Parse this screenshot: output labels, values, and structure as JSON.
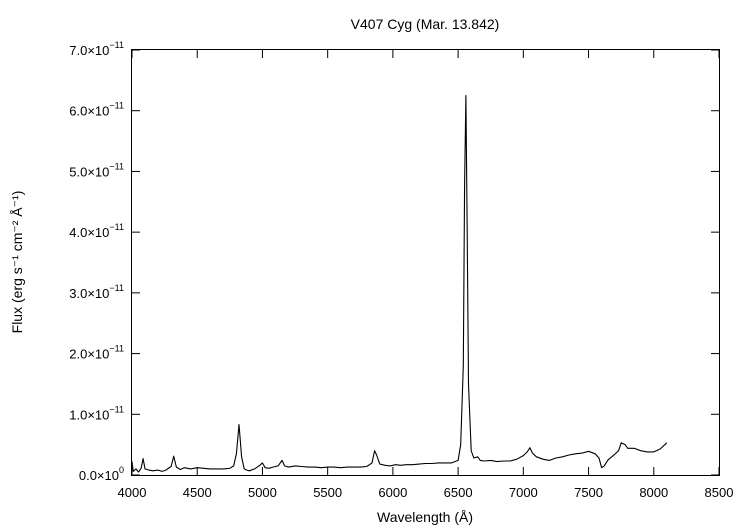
{
  "chart_data": {
    "type": "line",
    "title": "V407 Cyg (Mar. 13.842)",
    "xlabel": "Wavelength (Å)",
    "ylabel": "Flux (erg s⁻¹ cm⁻² Å⁻¹)",
    "xlim": [
      4000,
      8500
    ],
    "ylim": [
      0,
      7e-11
    ],
    "x_ticks": [
      4000,
      4500,
      5000,
      5500,
      6000,
      6500,
      7000,
      7500,
      8000,
      8500
    ],
    "x_tick_labels": [
      "4000",
      "4500",
      "5000",
      "5500",
      "6000",
      "6500",
      "7000",
      "7500",
      "8000",
      "8500"
    ],
    "y_ticks": [
      0,
      1e-11,
      2e-11,
      3e-11,
      4e-11,
      5e-11,
      6e-11,
      7e-11
    ],
    "y_tick_labels": [
      {
        "mant": "0.0×10",
        "exp": "0"
      },
      {
        "mant": "1.0×10",
        "exp": "−11"
      },
      {
        "mant": "2.0×10",
        "exp": "−11"
      },
      {
        "mant": "3.0×10",
        "exp": "−11"
      },
      {
        "mant": "4.0×10",
        "exp": "−11"
      },
      {
        "mant": "5.0×10",
        "exp": "−11"
      },
      {
        "mant": "6.0×10",
        "exp": "−11"
      },
      {
        "mant": "7.0×10",
        "exp": "−11"
      }
    ],
    "grid": false,
    "legend": "none",
    "series": [
      {
        "x": [
          4000,
          4010,
          4030,
          4050,
          4070,
          4085,
          4100,
          4130,
          4160,
          4200,
          4230,
          4260,
          4300,
          4320,
          4340,
          4370,
          4400,
          4450,
          4500,
          4550,
          4600,
          4650,
          4700,
          4750,
          4780,
          4800,
          4820,
          4840,
          4860,
          4880,
          4900,
          4940,
          4980,
          5000,
          5020,
          5050,
          5080,
          5120,
          5150,
          5170,
          5200,
          5250,
          5300,
          5350,
          5400,
          5450,
          5500,
          5550,
          5600,
          5650,
          5700,
          5750,
          5800,
          5840,
          5860,
          5875,
          5900,
          5940,
          5980,
          6020,
          6060,
          6100,
          6150,
          6200,
          6250,
          6300,
          6350,
          6400,
          6450,
          6500,
          6520,
          6540,
          6550,
          6560,
          6570,
          6580,
          6600,
          6620,
          6650,
          6670,
          6700,
          6750,
          6800,
          6850,
          6900,
          6950,
          7000,
          7030,
          7050,
          7070,
          7100,
          7150,
          7200,
          7250,
          7300,
          7350,
          7400,
          7450,
          7500,
          7550,
          7580,
          7600,
          7620,
          7650,
          7700,
          7730,
          7750,
          7780,
          7800,
          7850,
          7900,
          7950,
          8000,
          8050,
          8100
        ],
        "y": [
          2.2e-12,
          6e-13,
          1e-12,
          5e-13,
          1.1e-12,
          2.7e-12,
          1e-12,
          8e-13,
          7e-13,
          8e-13,
          6e-13,
          8e-13,
          1.4e-12,
          3.1e-12,
          1.3e-12,
          9e-13,
          1.2e-12,
          1e-12,
          1.2e-12,
          1.1e-12,
          1e-12,
          1e-12,
          1e-12,
          1.1e-12,
          1.5e-12,
          3.5e-12,
          8.3e-12,
          3e-12,
          1e-12,
          8e-13,
          7e-13,
          1e-12,
          1.6e-12,
          2e-12,
          1.2e-12,
          1.1e-12,
          1.3e-12,
          1.5e-12,
          2.4e-12,
          1.5e-12,
          1.3e-12,
          1.5e-12,
          1.4e-12,
          1.3e-12,
          1.3e-12,
          1.2e-12,
          1.3e-12,
          1.3e-12,
          1.2e-12,
          1.3e-12,
          1.3e-12,
          1.3e-12,
          1.4e-12,
          2e-12,
          4e-12,
          3.3e-12,
          1.8e-12,
          1.6e-12,
          1.5e-12,
          1.7e-12,
          1.6e-12,
          1.7e-12,
          1.7e-12,
          1.8e-12,
          1.9e-12,
          1.9e-12,
          2e-12,
          2e-12,
          2e-12,
          2.4e-12,
          5e-12,
          1.8e-11,
          4.8e-11,
          6.25e-11,
          4e-11,
          1.5e-11,
          4e-12,
          2.8e-12,
          3e-12,
          2.4e-12,
          2.3e-12,
          2.4e-12,
          2.2e-12,
          2.3e-12,
          2.3e-12,
          2.6e-12,
          3.2e-12,
          3.8e-12,
          4.5e-12,
          3.6e-12,
          3e-12,
          2.6e-12,
          2.4e-12,
          2.8e-12,
          3e-12,
          3.3e-12,
          3.5e-12,
          3.6e-12,
          3.9e-12,
          3.5e-12,
          2.8e-12,
          1.2e-12,
          1.5e-12,
          2.5e-12,
          3.4e-12,
          4e-12,
          5.3e-12,
          5e-12,
          4.4e-12,
          4.4e-12,
          4e-12,
          3.8e-12,
          3.8e-12,
          4.3e-12,
          5.3e-12
        ]
      }
    ]
  }
}
